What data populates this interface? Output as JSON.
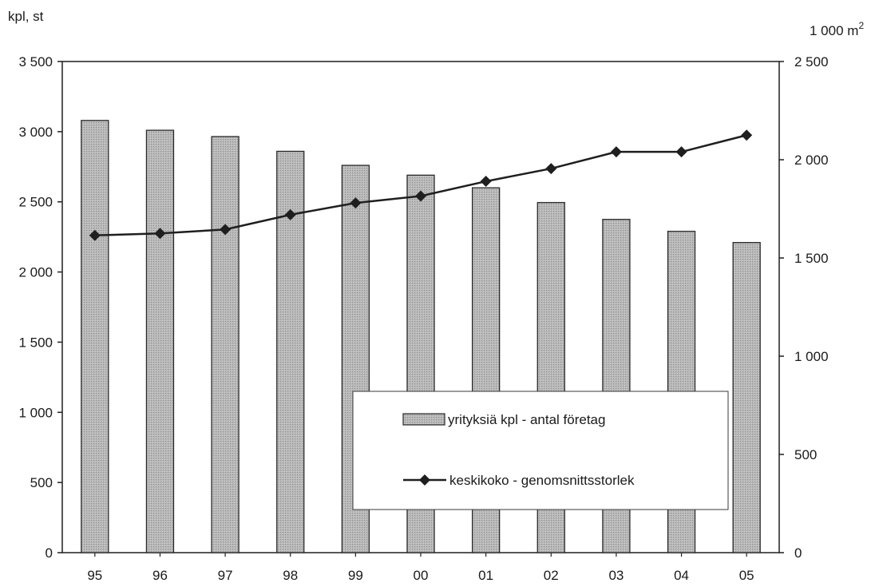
{
  "chart_data": {
    "type": "bar",
    "categories": [
      "95",
      "96",
      "97",
      "98",
      "99",
      "00",
      "01",
      "02",
      "03",
      "04",
      "05"
    ],
    "series": [
      {
        "name": "yrityksiä kpl - antal företag",
        "type": "bar",
        "axis": "left",
        "values": [
          3080,
          3010,
          2965,
          2860,
          2760,
          2690,
          2600,
          2495,
          2375,
          2290,
          2210
        ]
      },
      {
        "name": "keskikoko - genomsnittsstorlek",
        "type": "line",
        "axis": "right",
        "marker": "diamond",
        "values": [
          1615,
          1625,
          1645,
          1720,
          1780,
          1815,
          1890,
          1955,
          2040,
          2040,
          2125
        ]
      }
    ],
    "left_axis": {
      "unit_label": "kpl, st",
      "ylim": [
        0,
        3500
      ],
      "ticks": [
        0,
        500,
        1000,
        1500,
        2000,
        2500,
        3000,
        3500
      ],
      "tick_labels": [
        "0",
        "500",
        "1 000",
        "1 500",
        "2 000",
        "2 500",
        "3 000",
        "3 500"
      ]
    },
    "right_axis": {
      "unit_label": "1 000 m",
      "unit_superscript": "2",
      "ylim": [
        0,
        2500
      ],
      "ticks": [
        0,
        500,
        1000,
        1500,
        2000,
        2500
      ],
      "tick_labels": [
        "0",
        "500",
        "1 000",
        "1 500",
        "2 000",
        "2 500"
      ]
    },
    "grid": false,
    "legend_position": "bottom-right",
    "colors": {
      "bar_fill": "#b4b4b4",
      "bar_stroke": "#2a2a2a",
      "line": "#1f1f1f",
      "axis": "#1f1f1f"
    }
  }
}
